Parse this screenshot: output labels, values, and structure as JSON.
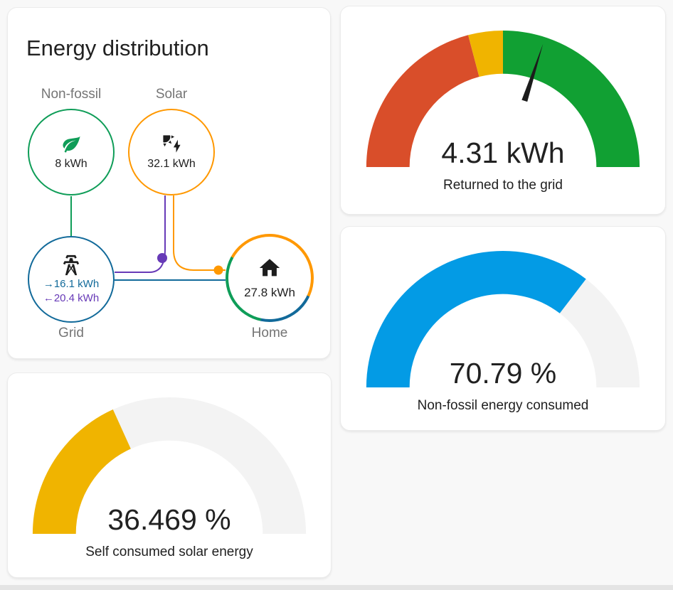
{
  "colors": {
    "non_fossil": "#0f9d58",
    "solar": "#ff9800",
    "grid_consumption": "#126a9a",
    "grid_return": "#673ab7",
    "severity_red": "#d94e2a",
    "severity_yellow": "#f0b400",
    "severity_green": "#11a033",
    "gauge_blue": "#039be5",
    "gauge_yellow": "#f0b400",
    "gauge_track": "#f3f3f3",
    "needle": "#1c1c1c"
  },
  "icons": {
    "arrow_right": "→",
    "arrow_left": "←"
  },
  "distribution": {
    "title": "Energy distribution",
    "nodes": {
      "non_fossil": {
        "label": "Non-fossil",
        "value": "8 kWh"
      },
      "solar": {
        "label": "Solar",
        "value": "32.1 kWh"
      },
      "grid": {
        "label": "Grid",
        "import_value": "16.1 kWh",
        "export_value": "20.4 kWh"
      },
      "home": {
        "label": "Home",
        "value": "27.8 kWh",
        "ring_segments": [
          {
            "source": "solar",
            "color": "#ff9800",
            "fraction": 0.49
          },
          {
            "source": "grid",
            "color": "#126a9a",
            "fraction": 0.21
          },
          {
            "source": "non_fossil",
            "color": "#0f9d58",
            "fraction": 0.3
          }
        ]
      }
    }
  },
  "chart_data": [
    {
      "type": "gauge",
      "title": "Returned to the grid",
      "value": 4.31,
      "unit": "kWh",
      "display": "4.31 kWh",
      "needle": true,
      "needle_fraction": 0.6,
      "segments": [
        {
          "color": "#d94e2a",
          "from": 0,
          "to": 0.418
        },
        {
          "color": "#f0b400",
          "from": 0.418,
          "to": 0.5
        },
        {
          "color": "#11a033",
          "from": 0.5,
          "to": 1
        }
      ]
    },
    {
      "type": "gauge",
      "title": "Non-fossil energy consumed",
      "value": 70.79,
      "unit": "%",
      "display": "70.79 %",
      "fraction": 0.7079,
      "color": "#039be5",
      "track": "#f3f3f3"
    },
    {
      "type": "gauge",
      "title": "Self consumed solar energy",
      "value": 36.469,
      "unit": "%",
      "display": "36.469 %",
      "fraction": 0.36469,
      "color": "#f0b400",
      "track": "#f3f3f3"
    }
  ]
}
